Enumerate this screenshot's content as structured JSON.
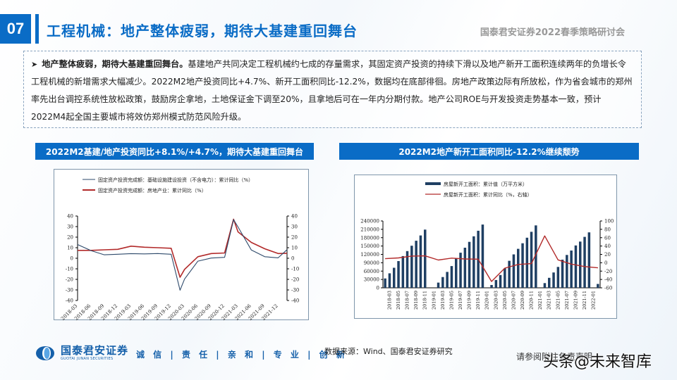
{
  "header": {
    "slide_number": "07",
    "title": "工程机械：地产整体疲弱，期待大基建重回舞台",
    "event": "国泰君安证券2022春季策略研讨会",
    "accent_color": "#0a6cc6"
  },
  "summary": {
    "bullet_icon": "arrow-right-icon",
    "lead": "地产整体疲弱，期待大基建重回舞台。",
    "body": "基建地产共同决定工程机械约七成的存量需求，其固定资产投资的持续下滑以及地产新开工面积连续两年的负增长令工程机械的新增需求大幅减少。2022M2地产投资同比+4.7%、新开工面积同比-12.2%，数据均在底部徘徊。房地产政策边际有所放松，作为省会城市的郑州率先出台调控系统性放松政策，鼓励房企拿地，土地保证金下调至20%，且拿地后可在一年内分期付款。地产公司ROE与开发投资走势基本一致，预计2022M4起全国主要城市将效仿郑州模式防范风险升级。"
  },
  "left_panel": {
    "title": "2022M2基建/地产投资同比+8.1%/+4.7%，期待大基建重回舞台"
  },
  "right_panel": {
    "title": "2022M2地产新开工面积同比-12.2%继续颓势"
  },
  "chart_data": [
    {
      "type": "line",
      "title": "2022M2基建/地产投资同比+8.1%/+4.7%，期待大基建重回舞台",
      "xlabel": "",
      "ylabel": "%",
      "ylim": [
        -40,
        40
      ],
      "yticks": [
        40,
        30,
        20,
        10,
        0,
        -10,
        -20,
        -30,
        -40
      ],
      "y2lim": [
        -40,
        40
      ],
      "x_tick_labels": [
        "2018-03",
        "2018-06",
        "2018-09",
        "2018-12",
        "2019-03",
        "2019-06",
        "2019-09",
        "2019-12",
        "2020-03",
        "2020-06",
        "2020-09",
        "2020-12",
        "2021-03",
        "2021-06",
        "2021-09",
        "2021-12"
      ],
      "legend_position": "top",
      "series": [
        {
          "name": "固定资产投资完成额：基础设施建设投资（不含电力）：累计同比（%）",
          "color": "#2e4a6b",
          "x": [
            "2018-03",
            "2018-06",
            "2018-09",
            "2018-12",
            "2019-03",
            "2019-06",
            "2019-09",
            "2019-12",
            "2020-02",
            "2020-03",
            "2020-06",
            "2020-09",
            "2020-12",
            "2021-02",
            "2021-03",
            "2021-06",
            "2021-09",
            "2021-12",
            "2022-02"
          ],
          "values": [
            13,
            7.3,
            3.3,
            3.8,
            4.4,
            4.1,
            4.5,
            3.8,
            -30.3,
            -19.7,
            -2.7,
            0.2,
            0.9,
            36.6,
            29.7,
            7.8,
            1.5,
            0.4,
            8.1
          ]
        },
        {
          "name": "固定资产投资完成额：房地产业：累计同比（%）",
          "color": "#b22a2a",
          "x": [
            "2018-03",
            "2018-06",
            "2018-09",
            "2018-12",
            "2019-03",
            "2019-06",
            "2019-09",
            "2019-12",
            "2020-02",
            "2020-03",
            "2020-06",
            "2020-09",
            "2020-12",
            "2021-02",
            "2021-03",
            "2021-06",
            "2021-09",
            "2021-12",
            "2022-02"
          ],
          "values": [
            7.5,
            7.5,
            8,
            8.5,
            11.5,
            10.5,
            10,
            9.5,
            -18,
            -10.5,
            1.5,
            4.5,
            5,
            37,
            25,
            15,
            9,
            4.5,
            4.7
          ]
        }
      ]
    },
    {
      "type": "bar+line",
      "title": "2022M2地产新开工面积同比-12.2%继续颓势",
      "ylim": [
        0,
        240000
      ],
      "yticks": [
        240000,
        210000,
        180000,
        150000,
        120000,
        90000,
        60000,
        30000,
        0
      ],
      "y2lim": [
        -60,
        100
      ],
      "y2ticks": [
        100,
        80,
        60,
        40,
        20,
        0,
        -20,
        -40,
        -60
      ],
      "x_tick_labels": [
        "2018-03",
        "2018-05",
        "2018-07",
        "2018-09",
        "2018-11",
        "2019-01",
        "2019-03",
        "2019-05",
        "2019-07",
        "2019-09",
        "2019-11",
        "2020-01",
        "2020-03",
        "2020-05",
        "2020-07",
        "2020-09",
        "2020-11",
        "2021-01",
        "2021-03",
        "2021-05",
        "2021-07",
        "2021-09",
        "2021-11",
        "2022-01"
      ],
      "legend_position": "top",
      "series": [
        {
          "name": "房屋新开工面积：累计值（万平方米）",
          "type": "bar",
          "color": "#1f3f63",
          "x": [
            "2018-02",
            "2018-03",
            "2018-04",
            "2018-05",
            "2018-06",
            "2018-07",
            "2018-08",
            "2018-09",
            "2018-10",
            "2018-11",
            "2018-12",
            "2019-01",
            "2019-02",
            "2019-03",
            "2019-04",
            "2019-05",
            "2019-06",
            "2019-07",
            "2019-08",
            "2019-09",
            "2019-10",
            "2019-11",
            "2019-12",
            "2020-01",
            "2020-02",
            "2020-03",
            "2020-04",
            "2020-05",
            "2020-06",
            "2020-07",
            "2020-08",
            "2020-09",
            "2020-10",
            "2020-11",
            "2020-12",
            "2021-01",
            "2021-02",
            "2021-03",
            "2021-04",
            "2021-05",
            "2021-06",
            "2021-07",
            "2021-08",
            "2021-09",
            "2021-10",
            "2021-11",
            "2021-12",
            "2022-01",
            "2022-02"
          ],
          "values": [
            33500,
            52000,
            72000,
            96000,
            114000,
            132000,
            151000,
            169000,
            188000,
            209000,
            null,
            null,
            18800,
            38700,
            57000,
            78000,
            106000,
            126000,
            144000,
            165000,
            185000,
            205000,
            227000,
            null,
            10000,
            28000,
            46000,
            70000,
            97000,
            120000,
            140000,
            160000,
            180000,
            201000,
            224000,
            null,
            17000,
            36000,
            55000,
            75000,
            101000,
            118000,
            134000,
            152000,
            166000,
            183000,
            199000,
            null,
            14000
          ]
        },
        {
          "name": "房屋新开工面积：累计同比（%，右轴）",
          "type": "line",
          "axis": "right",
          "color": "#b22a2a",
          "x": [
            "2018-02",
            "2018-05",
            "2018-08",
            "2018-11",
            "2019-02",
            "2019-05",
            "2019-08",
            "2019-11",
            "2020-02",
            "2020-05",
            "2020-08",
            "2020-11",
            "2021-02",
            "2021-05",
            "2021-08",
            "2021-11",
            "2022-02"
          ],
          "values": [
            9.7,
            11.5,
            16,
            16.5,
            6.5,
            11,
            9,
            8.6,
            -44.9,
            -12.8,
            -4,
            -2,
            64.3,
            6.9,
            -3.2,
            -9.1,
            -12.2
          ]
        }
      ]
    }
  ],
  "footer": {
    "logo_cn": "国泰君安证券",
    "logo_en": "GUOTAI JUNAN SECURITIES",
    "motto": "诚 信 | 责 任 | 亲 和 | 专 业 | 创 新",
    "source": "数据来源：Wind、国泰君安证券研究",
    "disclaimer": "请参阅附注免责声明",
    "watermark": "头条@未来智库"
  }
}
